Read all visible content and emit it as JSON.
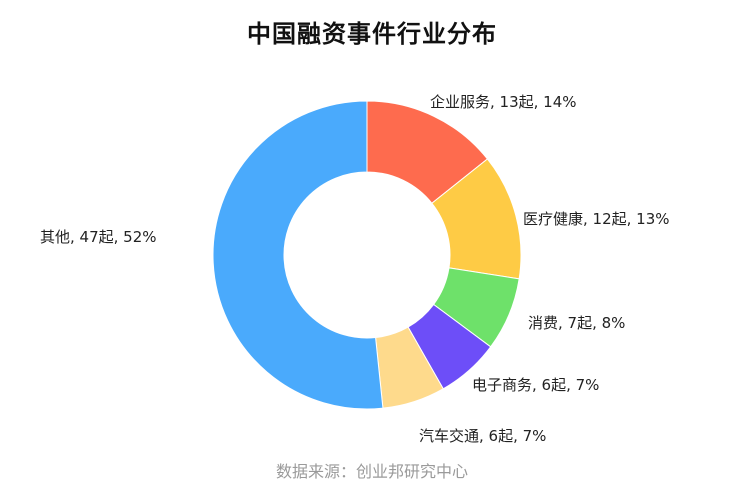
{
  "title": "中国融资事件行业分布",
  "source_note": "数据来源：创业邦研究中心",
  "chart_data": {
    "type": "pie",
    "subtype": "donut",
    "title": "中国融资事件行业分布",
    "unit": "起",
    "slices": [
      {
        "category": "企业服务",
        "value": 13,
        "percent": 14,
        "label": "企业服务, 13起, 14%",
        "color": "#fe6b4e"
      },
      {
        "category": "医疗健康",
        "value": 12,
        "percent": 13,
        "label": "医疗健康, 12起, 13%",
        "color": "#fecb45"
      },
      {
        "category": "消费",
        "value": 7,
        "percent": 8,
        "label": "消费, 7起, 8%",
        "color": "#6ee16a"
      },
      {
        "category": "电子商务",
        "value": 6,
        "percent": 7,
        "label": "电子商务, 6起, 7%",
        "color": "#6d4ef8"
      },
      {
        "category": "汽车交通",
        "value": 6,
        "percent": 7,
        "label": "汽车交通, 6起, 7%",
        "color": "#feda8c"
      },
      {
        "category": "其他",
        "value": 47,
        "percent": 52,
        "label": "其他, 47起, 52%",
        "color": "#4aaafc"
      }
    ],
    "legend": "none"
  }
}
